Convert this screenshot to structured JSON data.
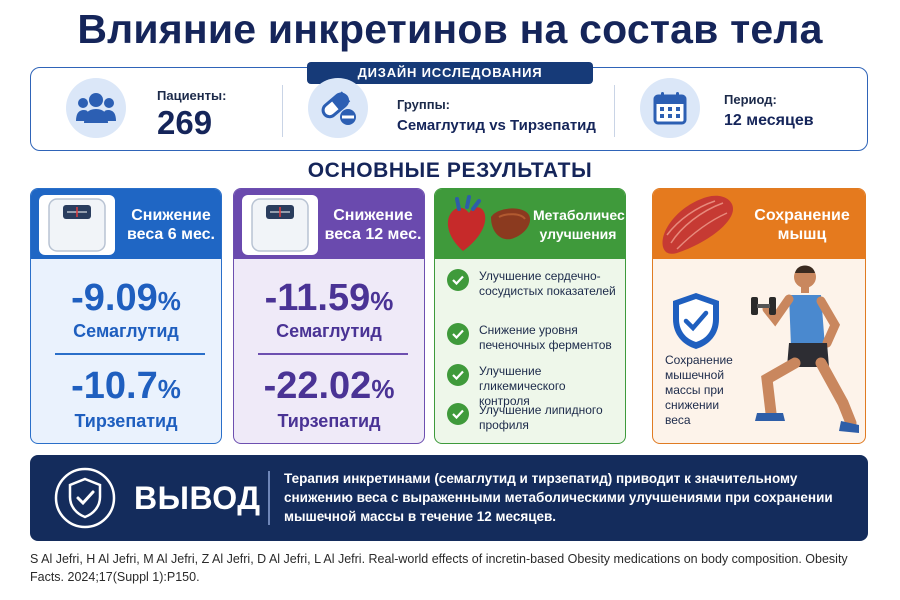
{
  "title": "Влияние инкретинов на состав тела",
  "design": {
    "tag": "ДИЗАЙН ИССЛЕДОВАНИЯ",
    "patients_label": "Пациенты:",
    "patients_value": "269",
    "groups_label": "Группы:",
    "groups_value": "Семаглутид vs Тирзепатид",
    "period_label": "Период:",
    "period_value": "12 месяцев",
    "icons": [
      "people-icon",
      "pills-icon",
      "calendar-icon"
    ]
  },
  "results_title": "ОСНОВНЫЕ РЕЗУЛЬТАТЫ",
  "cards": {
    "weight6": {
      "title_line1": "Снижение",
      "title_line2": "веса 6 мес.",
      "sema_value": "-9.09",
      "sema_unit": "%",
      "sema_label": "Семаглутид",
      "tirz_value": "-10.7",
      "tirz_unit": "%",
      "tirz_label": "Тирзепатид",
      "color": "#1f66c4"
    },
    "weight12": {
      "title_line1": "Снижение",
      "title_line2": "веса 12 мес.",
      "sema_value": "-11.59",
      "sema_unit": "%",
      "sema_label": "Семаглутид",
      "tirz_value": "-22.02",
      "tirz_unit": "%",
      "tirz_label": "Тирзепатид",
      "color": "#6a4aae"
    },
    "metabolic": {
      "title_line1": "Метаболические",
      "title_line2": "улучшения",
      "items": [
        "Улучшение сердечно-сосудистых показателей",
        "Снижение уровня печеночных ферментов",
        "Улучшение гликемического контроля",
        "Улучшение липидного профиля"
      ],
      "color": "#3f9a3b"
    },
    "muscle": {
      "title_line1": "Сохранение",
      "title_line2": "мышц",
      "text": "Сохранение мышечной массы при снижении веса",
      "color": "#e57a1e"
    }
  },
  "conclusion": {
    "title": "ВЫВОД",
    "text": "Терапия инкретинами (семаглутид и тирзепатид) приводит к значительному снижению веса с выраженными метаболическими улучшениями при сохранении мышечной массы в течение 12 месяцев."
  },
  "reference": "S Al Jefri, H Al Jefri, M Al Jefri, Z Al Jefri, D Al Jefri, L Al Jefri. Real-world effects of incretin-based Obesity medications on body composition. Obesity Facts. 2024;17(Suppl 1):P150."
}
